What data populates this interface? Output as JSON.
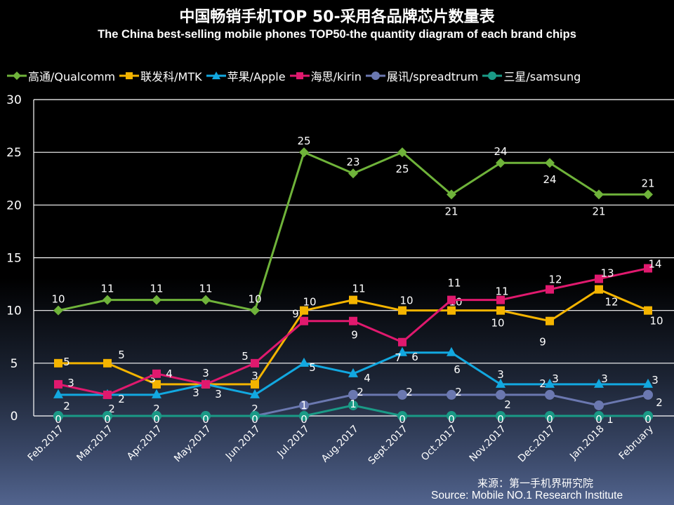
{
  "title": "中国畅销手机TOP 50-采用各品牌芯片数量表",
  "subtitle": "The China best-selling mobile phones TOP50-the quantity diagram of each brand chips",
  "source_cn": "来源：第一手机界研究院",
  "source_en": "Source: Mobile NO.1 Research Institute",
  "chart_data": {
    "type": "line",
    "title": "中国畅销手机TOP 50-采用各品牌芯片数量表",
    "categories": [
      "Feb.2017",
      "Mar.2017",
      "Apr.2017",
      "May.2017",
      "Jun.2017",
      "Jul.2017",
      "Aug.2017",
      "Sept.2017",
      "Oct.2017",
      "Nov.2017",
      "Dec.2017",
      "Jan.2018",
      "February"
    ],
    "ylim": [
      0,
      30
    ],
    "yticks": [
      0,
      5,
      10,
      15,
      20,
      25,
      30
    ],
    "grid": true,
    "legend": "top",
    "data_labels": true,
    "series": [
      {
        "name": "高通/Qualcomm",
        "color": "#6fb33a",
        "marker": "diamond",
        "values": [
          10,
          11,
          11,
          11,
          10,
          25,
          23,
          25,
          21,
          24,
          24,
          21,
          21
        ]
      },
      {
        "name": "联发科/MTK",
        "color": "#f4b400",
        "marker": "square",
        "values": [
          5,
          5,
          3,
          3,
          3,
          10,
          11,
          10,
          10,
          10,
          9,
          12,
          10
        ]
      },
      {
        "name": "苹果/Apple",
        "color": "#12a8e0",
        "marker": "triangle",
        "values": [
          2,
          2,
          2,
          3,
          2,
          5,
          4,
          6,
          6,
          3,
          3,
          3,
          3
        ]
      },
      {
        "name": "海思/kirin",
        "color": "#e0196e",
        "marker": "square",
        "values": [
          3,
          2,
          4,
          3,
          5,
          9,
          9,
          7,
          11,
          11,
          12,
          13,
          14
        ]
      },
      {
        "name": "展讯/spreadtrum",
        "color": "#6b78b0",
        "marker": "circle",
        "values": [
          0,
          0,
          0,
          0,
          0,
          1,
          2,
          2,
          2,
          2,
          2,
          1,
          2
        ]
      },
      {
        "name": "三星/samsung",
        "color": "#1a9a86",
        "marker": "circle",
        "values": [
          0,
          0,
          0,
          0,
          0,
          0,
          1,
          0,
          0,
          0,
          0,
          0,
          0
        ]
      }
    ]
  }
}
